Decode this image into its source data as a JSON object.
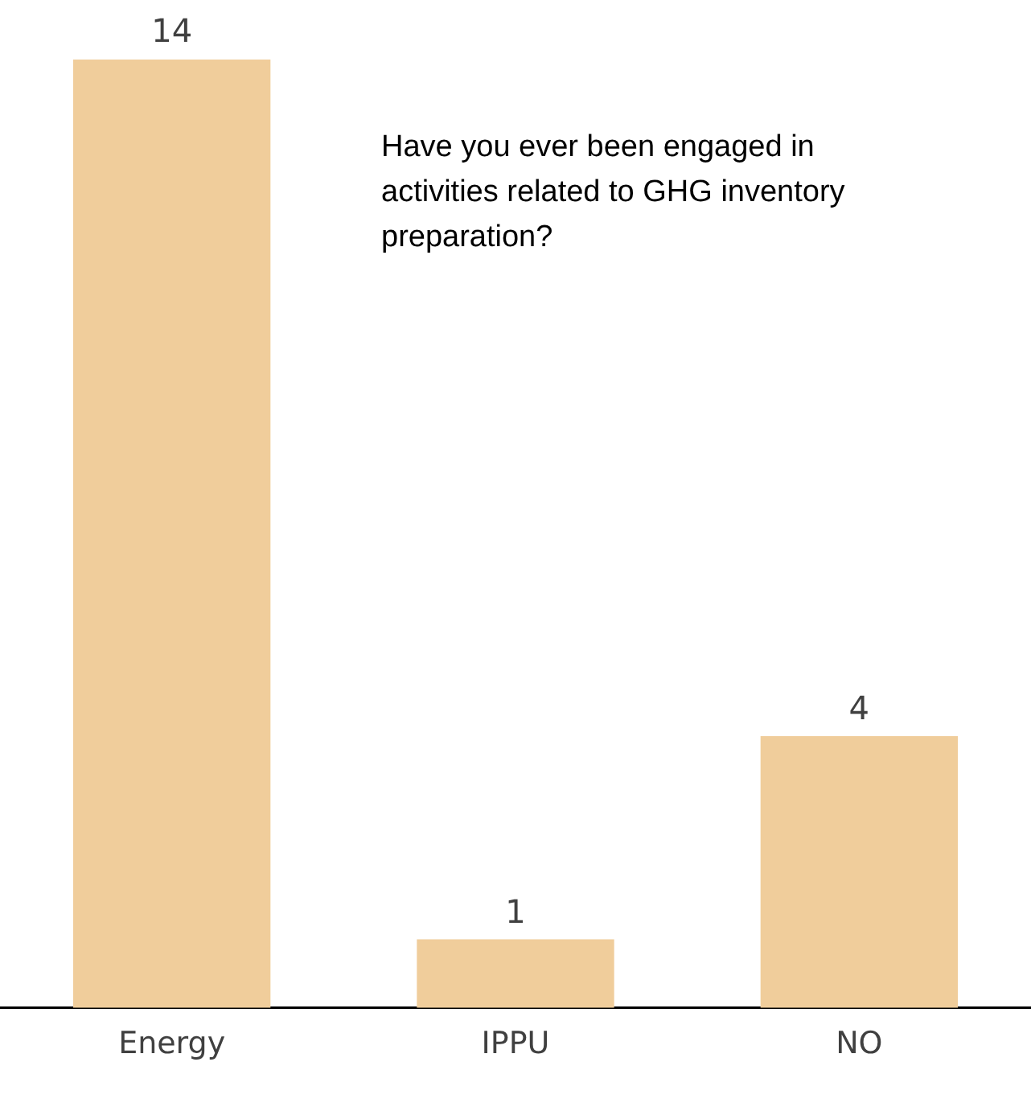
{
  "chart_data": {
    "type": "bar",
    "title": "Have you ever been engaged in activities related to GHG inventory preparation?",
    "categories": [
      "Energy",
      "IPPU",
      "NO"
    ],
    "values": [
      14,
      1,
      4
    ],
    "color": "#f0cd9b",
    "data_labels": true
  }
}
